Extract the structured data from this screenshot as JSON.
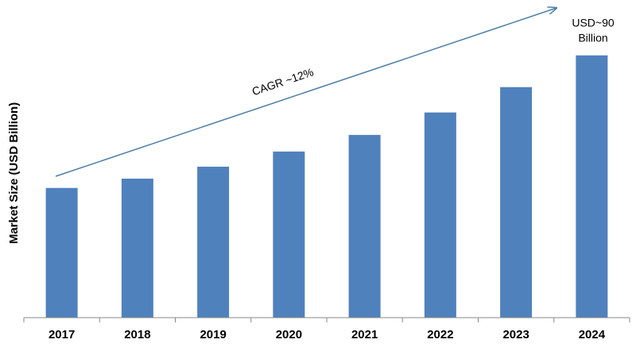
{
  "chart_data": {
    "type": "bar",
    "y_axis_label": "Market Size (USD Billion)",
    "categories": [
      "2017",
      "2018",
      "2019",
      "2020",
      "2021",
      "2022",
      "2023",
      "2024"
    ],
    "values": [
      44.5,
      47.7,
      51.8,
      57,
      62.7,
      70.4,
      79.1,
      90
    ],
    "color": "#4f81bd",
    "ylim": [
      0,
      100
    ],
    "annotations": [
      "CAGR ~12%",
      "USD~90",
      "Billion"
    ]
  }
}
